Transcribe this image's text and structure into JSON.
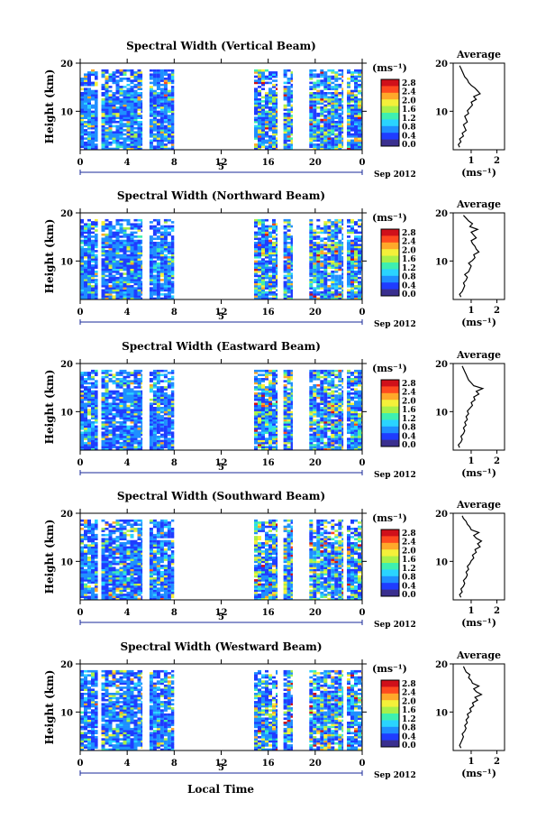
{
  "chart_data": {
    "type": "heatmap",
    "panels": [
      {
        "title": "Spectral Width (Vertical Beam)",
        "ylabel": "Height (km)",
        "yticks": [
          "20",
          "10"
        ],
        "xticks": [
          "0",
          "4",
          "8",
          "12",
          "16",
          "20",
          "0"
        ],
        "date_marker": "5",
        "date_label": "Sep 2012",
        "colorbar_unit": "(ms⁻¹)",
        "colorbar_ticks": [
          "2.8",
          "2.4",
          "2.0",
          "1.6",
          "1.2",
          "0.8",
          "0.4",
          "0.0"
        ],
        "avg_title": "Average",
        "avg_yticks": [
          "20",
          "10"
        ],
        "avg_xticks": [
          "1",
          "2"
        ],
        "avg_xlabel": "(ms⁻¹)",
        "avg_profile": [
          0.55,
          0.5,
          0.6,
          0.55,
          0.7,
          0.65,
          0.8,
          0.75,
          0.7,
          0.85,
          0.8,
          0.75,
          0.9,
          0.85,
          0.95,
          1.05,
          1.0,
          1.2,
          1.1,
          1.35,
          1.25,
          1.15,
          1.0,
          0.9,
          0.85,
          0.75,
          0.7,
          0.65,
          0.6,
          0.55
        ]
      },
      {
        "title": "Spectral Width (Northward Beam)",
        "ylabel": "Height (km)",
        "yticks": [
          "20",
          "10"
        ],
        "xticks": [
          "0",
          "4",
          "8",
          "12",
          "16",
          "20",
          "0"
        ],
        "date_marker": "5",
        "date_label": "Sep 2012",
        "colorbar_unit": "(ms⁻¹)",
        "colorbar_ticks": [
          "2.8",
          "2.4",
          "2.0",
          "1.6",
          "1.2",
          "0.8",
          "0.4",
          "0.0"
        ],
        "avg_title": "Average",
        "avg_yticks": [
          "20",
          "10"
        ],
        "avg_xticks": [
          "1",
          "2"
        ],
        "avg_xlabel": "(ms⁻¹)",
        "avg_profile": [
          0.6,
          0.55,
          0.65,
          0.7,
          0.75,
          0.7,
          0.8,
          0.85,
          0.75,
          0.9,
          0.95,
          1.0,
          0.9,
          1.05,
          1.15,
          1.1,
          1.3,
          1.2,
          1.15,
          1.05,
          1.0,
          1.2,
          1.1,
          1.0,
          1.25,
          0.95,
          1.05,
          0.9,
          0.8,
          0.7
        ]
      },
      {
        "title": "Spectral Width (Eastward Beam)",
        "ylabel": "Height (km)",
        "yticks": [
          "20",
          "10"
        ],
        "xticks": [
          "0",
          "4",
          "8",
          "12",
          "16",
          "20",
          "0"
        ],
        "date_marker": "5",
        "date_label": "Sep 2012",
        "colorbar_unit": "(ms⁻¹)",
        "colorbar_ticks": [
          "2.8",
          "2.4",
          "2.0",
          "1.6",
          "1.2",
          "0.8",
          "0.4",
          "0.0"
        ],
        "avg_title": "Average",
        "avg_yticks": [
          "20",
          "10"
        ],
        "avg_xticks": [
          "1",
          "2"
        ],
        "avg_xlabel": "(ms⁻¹)",
        "avg_profile": [
          0.55,
          0.5,
          0.6,
          0.65,
          0.6,
          0.7,
          0.75,
          0.7,
          0.8,
          0.75,
          0.85,
          0.8,
          0.9,
          0.85,
          0.95,
          1.05,
          1.0,
          1.15,
          1.1,
          1.3,
          1.2,
          1.45,
          1.1,
          1.0,
          0.9,
          0.85,
          0.8,
          0.75,
          0.7,
          0.65
        ]
      },
      {
        "title": "Spectral Width (Southward Beam)",
        "ylabel": "Height (km)",
        "yticks": [
          "20",
          "10"
        ],
        "xticks": [
          "0",
          "4",
          "8",
          "12",
          "16",
          "20",
          "0"
        ],
        "date_marker": "5",
        "date_label": "Sep 2012",
        "colorbar_unit": "(ms⁻¹)",
        "colorbar_ticks": [
          "2.8",
          "2.4",
          "2.0",
          "1.6",
          "1.2",
          "0.8",
          "0.4",
          "0.0"
        ],
        "avg_title": "Average",
        "avg_yticks": [
          "20",
          "10"
        ],
        "avg_xticks": [
          "1",
          "2"
        ],
        "avg_xlabel": "(ms⁻¹)",
        "avg_profile": [
          0.6,
          0.55,
          0.65,
          0.6,
          0.7,
          0.75,
          0.7,
          0.8,
          0.85,
          0.8,
          0.9,
          0.85,
          0.95,
          1.0,
          1.1,
          1.05,
          1.2,
          1.15,
          1.35,
          1.25,
          1.4,
          1.2,
          1.1,
          1.3,
          1.0,
          0.95,
          0.85,
          0.8,
          0.7,
          0.65
        ]
      },
      {
        "title": "Spectral Width (Westward Beam)",
        "ylabel": "Height (km)",
        "yticks": [
          "20",
          "10"
        ],
        "xticks": [
          "0",
          "4",
          "8",
          "12",
          "16",
          "20",
          "0"
        ],
        "date_marker": "5",
        "date_label": "Sep 2012",
        "colorbar_unit": "(ms⁻¹)",
        "colorbar_ticks": [
          "2.8",
          "2.4",
          "2.0",
          "1.6",
          "1.2",
          "0.8",
          "0.4",
          "0.0"
        ],
        "avg_title": "Average",
        "avg_yticks": [
          "20",
          "10"
        ],
        "avg_xticks": [
          "1",
          "2"
        ],
        "avg_xlabel": "(ms⁻¹)",
        "avg_profile": [
          0.6,
          0.55,
          0.6,
          0.65,
          0.7,
          0.65,
          0.75,
          0.8,
          0.75,
          0.85,
          0.8,
          0.9,
          0.85,
          1.0,
          0.95,
          1.1,
          1.05,
          1.25,
          1.15,
          1.4,
          1.2,
          1.1,
          1.3,
          1.05,
          1.0,
          0.9,
          0.95,
          0.8,
          0.75,
          0.7
        ]
      }
    ],
    "shared": {
      "xlabel": "Local Time",
      "y_range_km": [
        2,
        20
      ],
      "x_range_hours": [
        0,
        24
      ],
      "colorbar_range": [
        0.0,
        3.0
      ],
      "data_columns_hours": [
        [
          0.0,
          1.5
        ],
        [
          1.8,
          5.3
        ],
        [
          5.9,
          8.0
        ],
        [
          14.8,
          16.8
        ],
        [
          17.3,
          18.1
        ],
        [
          19.5,
          22.4
        ],
        [
          22.7,
          24.0
        ]
      ],
      "colorscale": [
        "#3a2f8f",
        "#1f3cff",
        "#1f8fff",
        "#2ad4ff",
        "#3ef0b0",
        "#a8f04a",
        "#f4f03a",
        "#ffa82a",
        "#ff4a1f",
        "#d0101a"
      ]
    }
  }
}
